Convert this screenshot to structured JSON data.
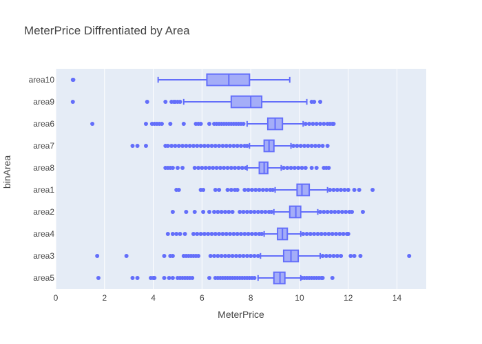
{
  "chart_data": {
    "type": "box",
    "orientation": "horizontal",
    "title": "MeterPrice Diffrentiated by Area",
    "xlabel": "MeterPrice",
    "ylabel": "binArea",
    "xlim": [
      0,
      15.2
    ],
    "xticks": [
      0,
      2,
      4,
      6,
      8,
      10,
      12,
      14
    ],
    "grid": true,
    "colors": {
      "box": "#636efa",
      "plot_bg": "#e5ecf6",
      "grid": "#ffffff",
      "text": "#444444"
    },
    "series": [
      {
        "category": "area10",
        "q1": 6.2,
        "median": 7.1,
        "q3": 7.95,
        "whisker_low": 4.2,
        "whisker_high": 9.6,
        "outliers": [
          0.7,
          0.72
        ]
      },
      {
        "category": "area9",
        "q1": 7.2,
        "median": 8.0,
        "q3": 8.45,
        "whisker_low": 5.25,
        "whisker_high": 10.3,
        "outliers": [
          0.7,
          3.75,
          4.5,
          4.75,
          4.85,
          4.9,
          5.0,
          5.1,
          10.5,
          10.6,
          10.85
        ]
      },
      {
        "category": "area6",
        "q1": 8.7,
        "median": 9.0,
        "q3": 9.3,
        "whisker_low": 7.85,
        "whisker_high": 10.15,
        "outliers": [
          1.5,
          3.7,
          3.95,
          4.05,
          4.15,
          4.25,
          4.35,
          4.7,
          5.25,
          5.75,
          5.85,
          5.95,
          6.3,
          6.5,
          6.6,
          6.7,
          6.8,
          6.9,
          7.0,
          7.1,
          7.2,
          7.3,
          7.4,
          7.5,
          7.6,
          7.7,
          10.25,
          10.4,
          10.55,
          10.7,
          10.85,
          11.0,
          11.15,
          11.25,
          11.35,
          11.4
        ]
      },
      {
        "category": "area7",
        "q1": 8.55,
        "median": 8.75,
        "q3": 8.95,
        "whisker_low": 7.95,
        "whisker_high": 9.65,
        "outliers": [
          3.15,
          3.35,
          3.7,
          4.5,
          4.6,
          4.75,
          4.9,
          5.05,
          5.2,
          5.35,
          5.5,
          5.65,
          5.8,
          5.95,
          6.1,
          6.25,
          6.4,
          6.55,
          6.7,
          6.85,
          7.0,
          7.15,
          7.3,
          7.45,
          7.6,
          7.75,
          7.85,
          9.75,
          9.9,
          10.05,
          10.2,
          10.35,
          10.5,
          10.65,
          10.8,
          10.95,
          11.15
        ]
      },
      {
        "category": "area8",
        "q1": 8.35,
        "median": 8.55,
        "q3": 8.7,
        "whisker_low": 7.85,
        "whisker_high": 9.25,
        "outliers": [
          4.5,
          4.6,
          4.7,
          4.8,
          5.0,
          5.2,
          5.7,
          5.85,
          6.0,
          6.15,
          6.3,
          6.45,
          6.6,
          6.75,
          6.9,
          7.05,
          7.2,
          7.35,
          7.5,
          7.65,
          7.8,
          9.35,
          9.5,
          9.65,
          9.8,
          9.95,
          10.1,
          10.25,
          10.5,
          10.7,
          11.0,
          11.1,
          11.2
        ]
      },
      {
        "category": "area1",
        "q1": 9.9,
        "median": 10.1,
        "q3": 10.4,
        "whisker_low": 9.0,
        "whisker_high": 11.15,
        "outliers": [
          4.95,
          5.05,
          5.95,
          6.05,
          6.55,
          6.7,
          7.05,
          7.2,
          7.35,
          7.45,
          7.75,
          7.9,
          8.05,
          8.2,
          8.35,
          8.5,
          8.65,
          8.8,
          8.9,
          11.25,
          11.4,
          11.55,
          11.7,
          11.85,
          12.0,
          12.25,
          12.45,
          13.0
        ]
      },
      {
        "category": "area2",
        "q1": 9.6,
        "median": 9.85,
        "q3": 10.05,
        "whisker_low": 8.95,
        "whisker_high": 10.75,
        "outliers": [
          4.8,
          5.35,
          5.7,
          6.05,
          6.3,
          6.5,
          6.65,
          6.8,
          6.95,
          7.1,
          7.25,
          7.55,
          7.7,
          7.85,
          8.0,
          8.15,
          8.3,
          8.45,
          8.6,
          8.75,
          8.85,
          10.85,
          11.0,
          11.15,
          11.3,
          11.45,
          11.6,
          11.75,
          11.9,
          12.05,
          12.15,
          12.6
        ]
      },
      {
        "category": "area4",
        "q1": 9.1,
        "median": 9.3,
        "q3": 9.5,
        "whisker_low": 8.55,
        "whisker_high": 10.05,
        "outliers": [
          4.6,
          4.8,
          4.95,
          5.1,
          5.3,
          5.65,
          5.8,
          5.95,
          6.1,
          6.25,
          6.4,
          6.55,
          6.7,
          6.85,
          7.0,
          7.15,
          7.3,
          7.45,
          7.6,
          7.75,
          7.9,
          8.05,
          8.2,
          8.35,
          8.45,
          10.15,
          10.3,
          10.45,
          10.6,
          10.75,
          10.9,
          11.05,
          11.2,
          11.35,
          11.5,
          11.65,
          11.8,
          11.95,
          12.0
        ]
      },
      {
        "category": "area3",
        "q1": 9.35,
        "median": 9.65,
        "q3": 9.95,
        "whisker_low": 8.4,
        "whisker_high": 10.85,
        "outliers": [
          1.7,
          2.9,
          4.45,
          4.7,
          4.8,
          5.25,
          5.35,
          5.45,
          5.55,
          5.65,
          5.75,
          5.85,
          6.35,
          6.5,
          6.65,
          6.8,
          6.95,
          7.1,
          7.25,
          7.4,
          7.55,
          7.7,
          7.85,
          8.0,
          8.15,
          8.3,
          10.95,
          11.1,
          11.25,
          11.4,
          11.55,
          11.7,
          12.1,
          12.25,
          12.5,
          14.5
        ]
      },
      {
        "category": "area5",
        "q1": 8.95,
        "median": 9.2,
        "q3": 9.4,
        "whisker_low": 8.3,
        "whisker_high": 10.05,
        "outliers": [
          1.75,
          3.15,
          3.35,
          3.9,
          4.0,
          4.05,
          4.45,
          4.65,
          4.8,
          5.0,
          5.1,
          5.2,
          5.3,
          5.4,
          5.5,
          5.6,
          6.3,
          6.55,
          6.65,
          6.75,
          6.85,
          6.95,
          7.05,
          7.15,
          7.25,
          7.35,
          7.45,
          7.55,
          7.65,
          7.75,
          7.85,
          7.95,
          8.05,
          8.15,
          10.1,
          10.2,
          10.3,
          10.4,
          10.5,
          10.6,
          10.7,
          10.8,
          10.9,
          10.95,
          11.35
        ]
      }
    ]
  }
}
